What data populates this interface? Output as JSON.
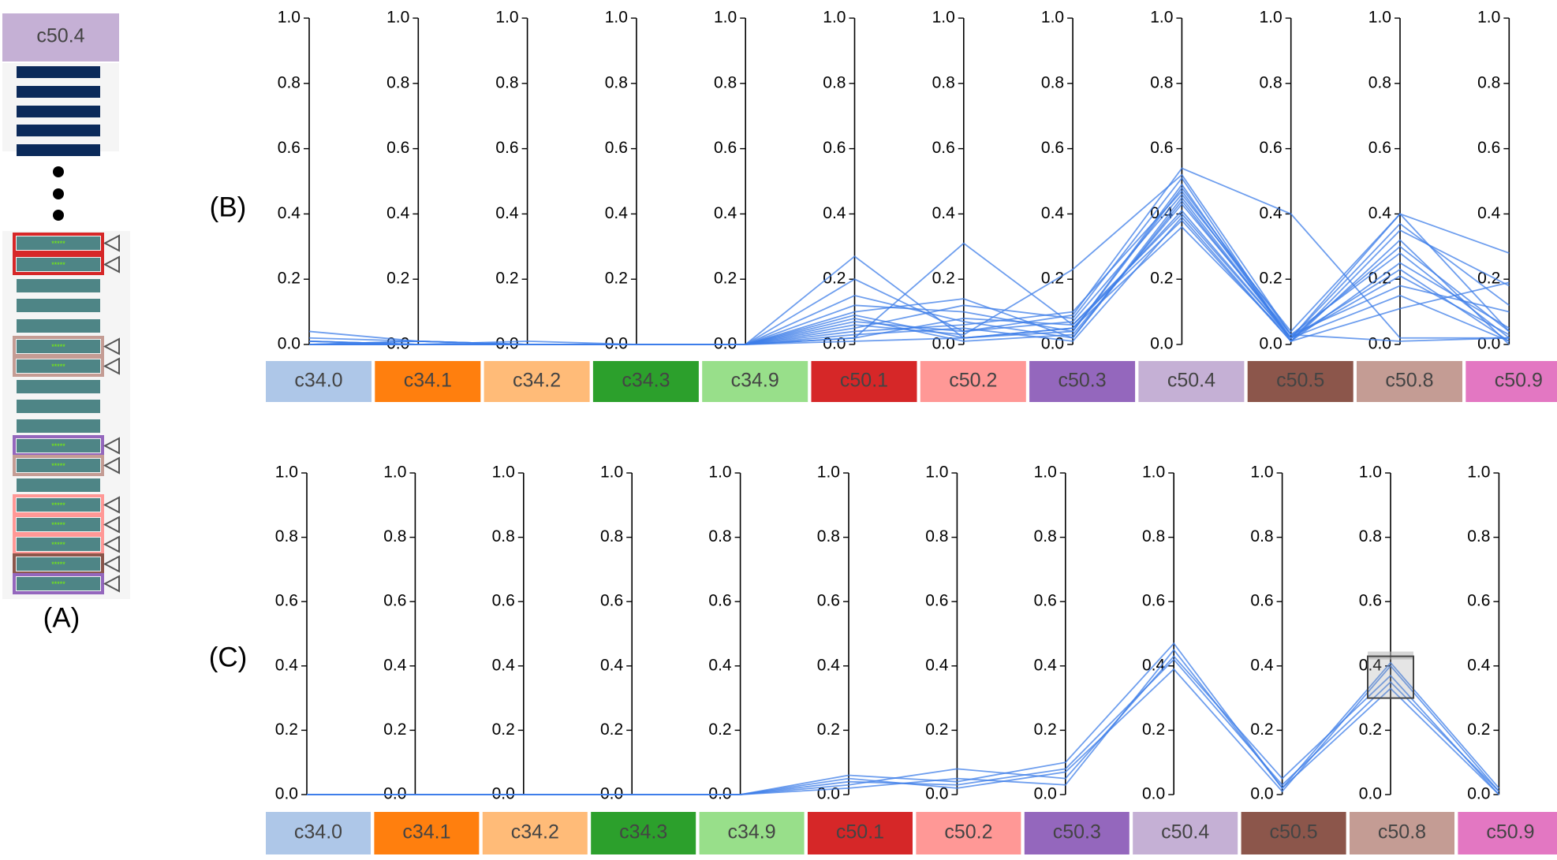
{
  "panel_labels": {
    "a": "(A)",
    "b": "(B)",
    "c": "(C)"
  },
  "sidebar": {
    "header_label": "c50.4",
    "header_color": "#c5b0d5",
    "top_bar_color": "#0b2a5a",
    "row_color": "#4e8586",
    "highlight_colors": [
      "#d62728",
      "#d62728",
      "#c49c94",
      "#c49c94",
      "#9467bd",
      "#c49c94",
      "#ff9896",
      "#ff9896",
      "#ff9896",
      "#8c564b",
      "#9467bd"
    ],
    "row_star_text": "*****",
    "triangle_icon": "triangle-left-outline-icon"
  },
  "chart_data": [
    {
      "type": "parallel-coordinates",
      "panel": "(B)",
      "ticks": [
        "0.0",
        "0.2",
        "0.4",
        "0.6",
        "0.8",
        "1.0"
      ],
      "ylim": [
        0,
        1
      ],
      "line_color": "#3d7ee8",
      "axes": [
        {
          "label": "c34.0",
          "color": "#aec7e8"
        },
        {
          "label": "c34.1",
          "color": "#ff7f0e"
        },
        {
          "label": "c34.2",
          "color": "#ffbb78"
        },
        {
          "label": "c34.3",
          "color": "#2ca02c"
        },
        {
          "label": "c34.9",
          "color": "#98df8a"
        },
        {
          "label": "c50.1",
          "color": "#d62728"
        },
        {
          "label": "c50.2",
          "color": "#ff9896"
        },
        {
          "label": "c50.3",
          "color": "#9467bd"
        },
        {
          "label": "c50.4",
          "color": "#c5b0d5"
        },
        {
          "label": "c50.5",
          "color": "#8c564b"
        },
        {
          "label": "c50.8",
          "color": "#c49c94"
        },
        {
          "label": "c50.9",
          "color": "#e377c2"
        }
      ],
      "series": [
        {
          "values": [
            0.04,
            0.01,
            0.0,
            0.0,
            0.0,
            0.27,
            0.02,
            0.05,
            0.41,
            0.02,
            0.4,
            0.28
          ]
        },
        {
          "values": [
            0.01,
            0.0,
            0.0,
            0.0,
            0.0,
            0.2,
            0.04,
            0.09,
            0.54,
            0.4,
            0.02,
            0.02
          ]
        },
        {
          "values": [
            0.0,
            0.01,
            0.0,
            0.0,
            0.0,
            0.02,
            0.31,
            0.06,
            0.38,
            0.01,
            0.35,
            0.18
          ]
        },
        {
          "values": [
            0.02,
            0.01,
            0.0,
            0.0,
            0.0,
            0.1,
            0.14,
            0.02,
            0.45,
            0.02,
            0.3,
            0.04
          ]
        },
        {
          "values": [
            0.0,
            0.0,
            0.0,
            0.0,
            0.0,
            0.06,
            0.03,
            0.23,
            0.52,
            0.03,
            0.28,
            0.02
          ]
        },
        {
          "values": [
            0.01,
            0.0,
            0.0,
            0.0,
            0.0,
            0.12,
            0.1,
            0.04,
            0.49,
            0.01,
            0.25,
            0.05
          ]
        },
        {
          "values": [
            0.0,
            0.0,
            0.0,
            0.0,
            0.0,
            0.04,
            0.06,
            0.1,
            0.47,
            0.02,
            0.21,
            0.03
          ]
        },
        {
          "values": [
            0.0,
            0.0,
            0.01,
            0.0,
            0.0,
            0.08,
            0.01,
            0.03,
            0.43,
            0.03,
            0.18,
            0.1
          ]
        },
        {
          "values": [
            0.0,
            0.0,
            0.0,
            0.0,
            0.0,
            0.02,
            0.08,
            0.06,
            0.4,
            0.02,
            0.15,
            0.01
          ]
        },
        {
          "values": [
            0.01,
            0.0,
            0.0,
            0.0,
            0.0,
            0.05,
            0.12,
            0.08,
            0.51,
            0.01,
            0.32,
            0.0
          ]
        },
        {
          "values": [
            0.0,
            0.0,
            0.0,
            0.0,
            0.0,
            0.09,
            0.02,
            0.05,
            0.36,
            0.02,
            0.37,
            0.12
          ]
        },
        {
          "values": [
            0.0,
            0.01,
            0.0,
            0.0,
            0.0,
            0.03,
            0.05,
            0.01,
            0.39,
            0.01,
            0.11,
            0.19
          ]
        },
        {
          "values": [
            0.0,
            0.0,
            0.0,
            0.0,
            0.0,
            0.07,
            0.04,
            0.07,
            0.46,
            0.04,
            0.4,
            0.04
          ]
        },
        {
          "values": [
            0.0,
            0.0,
            0.0,
            0.0,
            0.0,
            0.15,
            0.07,
            0.02,
            0.44,
            0.02,
            0.23,
            0.01
          ]
        },
        {
          "values": [
            0.0,
            0.0,
            0.0,
            0.0,
            0.0,
            0.01,
            0.02,
            0.04,
            0.48,
            0.03,
            0.01,
            0.02
          ]
        }
      ]
    },
    {
      "type": "parallel-coordinates",
      "panel": "(C)",
      "ticks": [
        "0.0",
        "0.2",
        "0.4",
        "0.6",
        "0.8",
        "1.0"
      ],
      "ylim": [
        0,
        1
      ],
      "line_color": "#3d7ee8",
      "brush": {
        "axis": "c50.8",
        "range": [
          0.3,
          0.43
        ]
      },
      "axes": [
        {
          "label": "c34.0",
          "color": "#aec7e8"
        },
        {
          "label": "c34.1",
          "color": "#ff7f0e"
        },
        {
          "label": "c34.2",
          "color": "#ffbb78"
        },
        {
          "label": "c34.3",
          "color": "#2ca02c"
        },
        {
          "label": "c34.9",
          "color": "#98df8a"
        },
        {
          "label": "c50.1",
          "color": "#d62728"
        },
        {
          "label": "c50.2",
          "color": "#ff9896"
        },
        {
          "label": "c50.3",
          "color": "#9467bd"
        },
        {
          "label": "c50.4",
          "color": "#c5b0d5"
        },
        {
          "label": "c50.5",
          "color": "#8c564b"
        },
        {
          "label": "c50.8",
          "color": "#c49c94"
        },
        {
          "label": "c50.9",
          "color": "#e377c2"
        }
      ],
      "series": [
        {
          "values": [
            0.0,
            0.0,
            0.0,
            0.0,
            0.0,
            0.06,
            0.04,
            0.1,
            0.47,
            0.02,
            0.41,
            0.02
          ]
        },
        {
          "values": [
            0.0,
            0.0,
            0.0,
            0.0,
            0.0,
            0.03,
            0.08,
            0.05,
            0.43,
            0.05,
            0.37,
            0.0
          ]
        },
        {
          "values": [
            0.0,
            0.0,
            0.0,
            0.0,
            0.0,
            0.05,
            0.02,
            0.07,
            0.39,
            0.01,
            0.4,
            0.01
          ]
        },
        {
          "values": [
            0.0,
            0.0,
            0.0,
            0.0,
            0.0,
            0.02,
            0.05,
            0.03,
            0.45,
            0.02,
            0.33,
            0.0
          ]
        },
        {
          "values": [
            0.0,
            0.0,
            0.0,
            0.0,
            0.0,
            0.04,
            0.03,
            0.08,
            0.42,
            0.03,
            0.35,
            0.01
          ]
        }
      ]
    }
  ]
}
